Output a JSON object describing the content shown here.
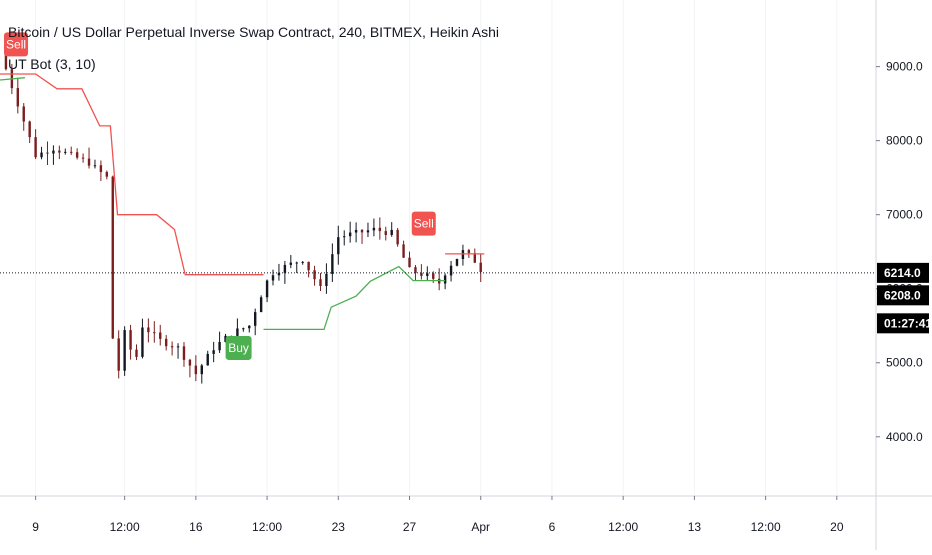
{
  "chart_title": "Bitcoin / US Dollar Perpetual Inverse Swap Contract, 240, BITMEX, Heikin Ashi",
  "indicator_label": "UT Bot (3, 10)",
  "colors": {
    "bull": "#131722",
    "bear": "#7b1e1e",
    "stop_up": "#4caf50",
    "stop_down": "#f05350",
    "buy_label": "#4caf50",
    "sell_label": "#f05350",
    "price_tag_bg": "#000000",
    "grid": "#e9ecef"
  },
  "chart_data": {
    "type": "line",
    "title": "Bitcoin / US Dollar Perpetual Inverse Swap Contract, 240, BITMEX, Heikin Ashi",
    "xlabel": "",
    "ylabel": "",
    "y_axis_side": "right",
    "y_ticks": [
      "4000.0",
      "5000.0",
      "6000.0",
      "7000.0",
      "8000.0",
      "9000.0"
    ],
    "x_ticks": [
      "9",
      "12:00",
      "16",
      "12:00",
      "23",
      "27",
      "Apr",
      "6",
      "12:00",
      "13",
      "12:00",
      "20"
    ],
    "x_tick_day_index": [
      1,
      3.5,
      5.5,
      7.5,
      9.5,
      11.5,
      13.5,
      15.5,
      17.5,
      19.5,
      21.5,
      23.5
    ],
    "ylim": [
      3200,
      9900
    ],
    "xlim": [
      0,
      24.6
    ],
    "price_series": {
      "name": "",
      "x": [
        0,
        0.5,
        1,
        1.5,
        2,
        2.5,
        3,
        3.1,
        3.3,
        3.5,
        3.8,
        4,
        4.5,
        5,
        5.5,
        6,
        6.5,
        7,
        7.4,
        7.6,
        8,
        8.5,
        9,
        9.5,
        10,
        10.5,
        11,
        11.5,
        12,
        12.3,
        12.6,
        13,
        13.3,
        13.6
      ],
      "close": [
        9200,
        8500,
        7800,
        7900,
        7800,
        7700,
        7500,
        5600,
        4800,
        5400,
        5000,
        5500,
        5300,
        5200,
        4850,
        5200,
        5400,
        5500,
        6000,
        6200,
        6300,
        6400,
        6000,
        6700,
        6750,
        6800,
        6750,
        6250,
        6170,
        6050,
        6300,
        6500,
        6400,
        6190
      ]
    },
    "stop_series": [
      {
        "name": "",
        "color": "stop_down",
        "x": [
          0,
          1,
          1.6,
          2.3,
          2.8,
          3.1,
          3.3,
          4.4,
          4.9,
          5.2,
          7.4
        ],
        "y": [
          8900,
          8900,
          8700,
          8700,
          8200,
          8200,
          7000,
          7000,
          6800,
          6190,
          6190
        ]
      },
      {
        "name": "",
        "color": "stop_up",
        "x": [
          7.4,
          9.1,
          9.3,
          10.0,
          10.4,
          11.2,
          11.6,
          12.5
        ],
        "y": [
          5450,
          5450,
          5750,
          5900,
          6100,
          6300,
          6110,
          6110
        ]
      },
      {
        "name": "",
        "color": "stop_down",
        "x": [
          12.5,
          13.6
        ],
        "y": [
          6470,
          6470
        ]
      },
      {
        "name": "",
        "color": "stop_up",
        "x": [
          0,
          0.7
        ],
        "y": [
          8820,
          8850
        ]
      }
    ],
    "signals": [
      {
        "label": "Sell",
        "x": 0.45,
        "y": 9300,
        "kind": "sell"
      },
      {
        "label": "Buy",
        "x": 6.7,
        "y": 5200,
        "kind": "buy"
      },
      {
        "label": "Sell",
        "x": 11.9,
        "y": 6880,
        "kind": "sell"
      }
    ],
    "last_price": 6214.0,
    "last_price_label": "6214.0",
    "stop_value_label": "6208.0",
    "stop_value": 6208.0,
    "countdown_label": "01:27:41",
    "grid": false,
    "legend": "none"
  }
}
